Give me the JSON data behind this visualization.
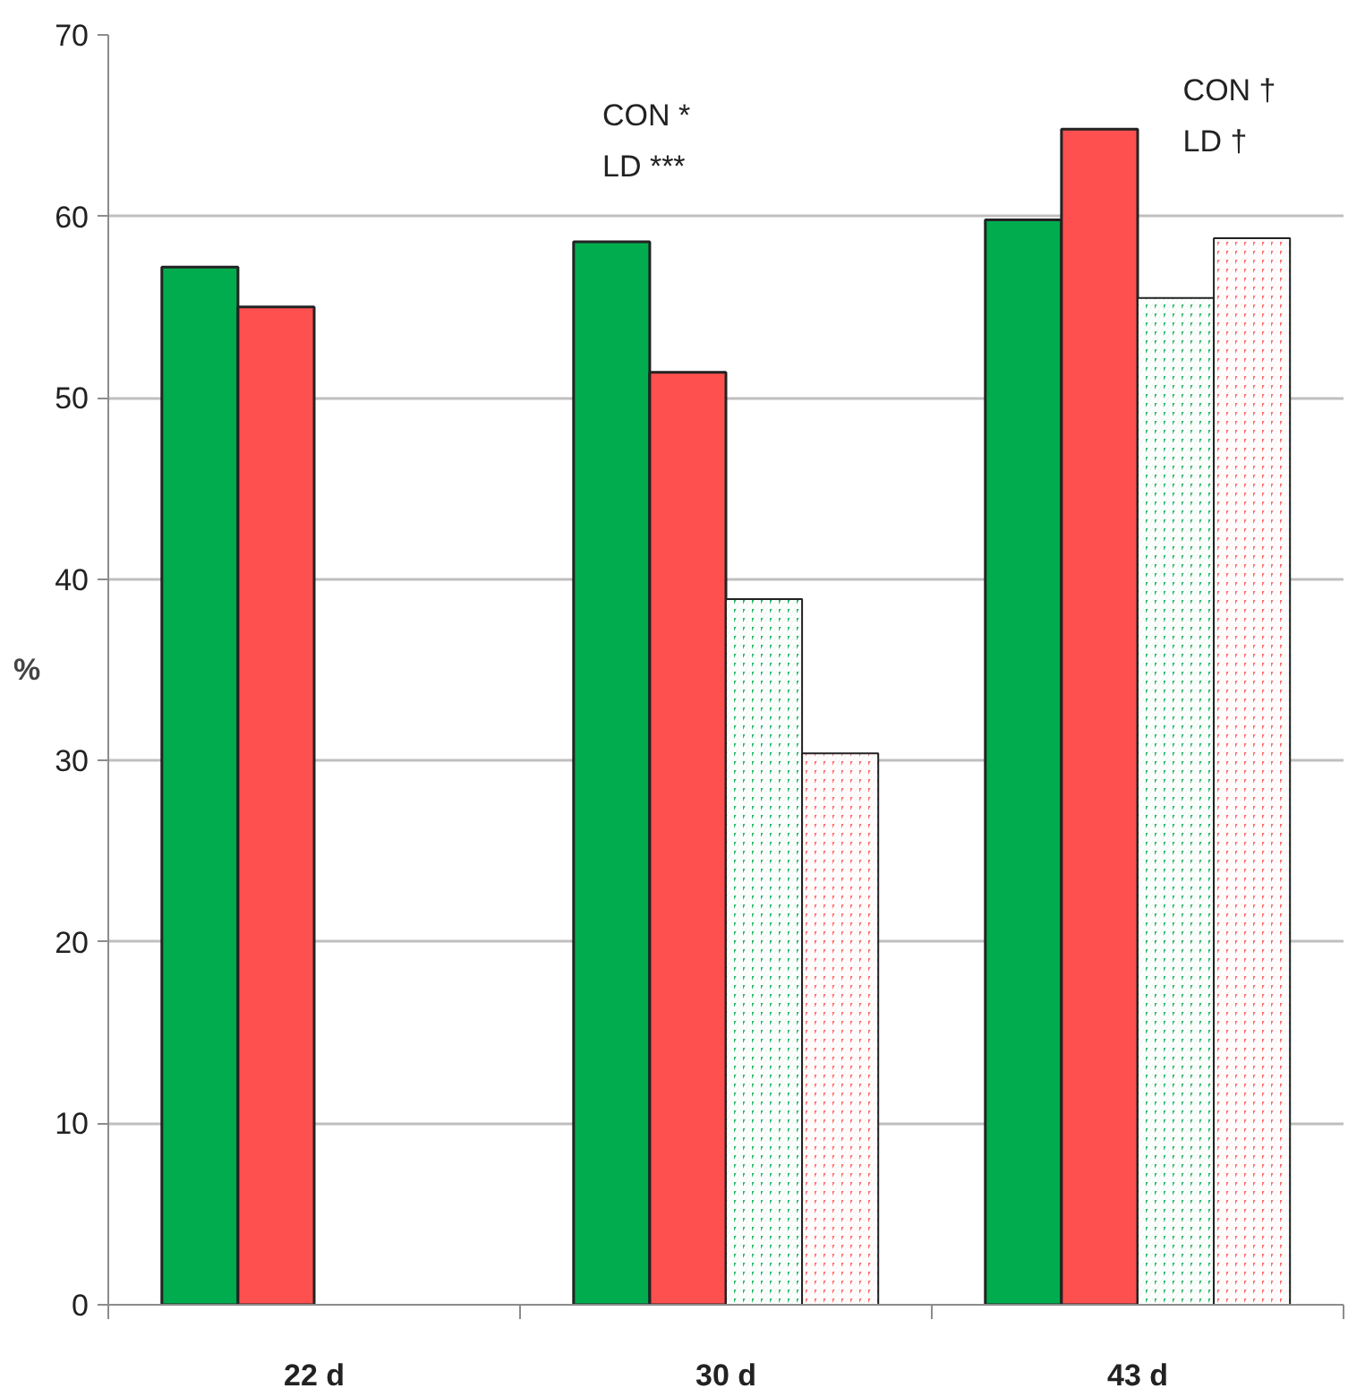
{
  "chart_data": {
    "type": "bar",
    "ylabel": "%",
    "categories": [
      "22 d",
      "30 d",
      "43 d"
    ],
    "series": [
      {
        "color": "#00ac4e",
        "values": [
          57.2,
          58.6,
          59.8
        ]
      },
      {
        "color": "#ff5050",
        "values": [
          55.0,
          51.4,
          64.8
        ]
      },
      {
        "color": "#00ac4e",
        "values": [
          null,
          38.9,
          55.5
        ]
      },
      {
        "color": "#ff5050",
        "values": [
          null,
          30.4,
          58.8
        ]
      }
    ],
    "ylim": [
      0,
      70
    ],
    "yticks": [
      0,
      10,
      20,
      30,
      40,
      50,
      60,
      70
    ],
    "grid": "y",
    "annotations": [
      "CON *\nLD ***",
      "CON †\nLD †"
    ]
  }
}
